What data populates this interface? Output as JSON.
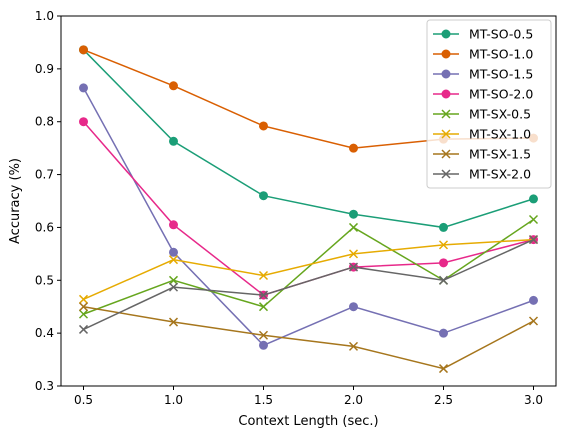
{
  "chart_data": {
    "type": "line",
    "title": "",
    "xlabel": "Context Length (sec.)",
    "ylabel": "Accuracy (%)",
    "x": [
      0.5,
      1.0,
      1.5,
      2.0,
      2.5,
      3.0
    ],
    "xticks": [
      "0.5",
      "1.0",
      "1.5",
      "2.0",
      "2.5",
      "3.0"
    ],
    "yticks": [
      "0.3",
      "0.4",
      "0.5",
      "0.6",
      "0.7",
      "0.8",
      "0.9",
      "1.0"
    ],
    "xlim": [
      0.375,
      3.125
    ],
    "ylim": [
      0.3,
      1.0
    ],
    "grid": false,
    "legend_position": "top-right",
    "series": [
      {
        "name": "MT-SO-0.5",
        "color": "#1b9e77",
        "marker": "circle",
        "values": [
          0.936,
          0.763,
          0.66,
          0.625,
          0.6,
          0.654
        ]
      },
      {
        "name": "MT-SO-1.0",
        "color": "#d95f02",
        "marker": "circle",
        "values": [
          0.936,
          0.868,
          0.792,
          0.75,
          0.767,
          0.769
        ]
      },
      {
        "name": "MT-SO-1.5",
        "color": "#7570b3",
        "marker": "circle",
        "values": [
          0.864,
          0.553,
          0.377,
          0.45,
          0.4,
          0.462
        ]
      },
      {
        "name": "MT-SO-2.0",
        "color": "#e7298a",
        "marker": "circle",
        "values": [
          0.8,
          0.605,
          0.472,
          0.525,
          0.533,
          0.577
        ]
      },
      {
        "name": "MT-SX-0.5",
        "color": "#66a61e",
        "marker": "x",
        "values": [
          0.436,
          0.5,
          0.45,
          0.6,
          0.5,
          0.615
        ]
      },
      {
        "name": "MT-SX-1.0",
        "color": "#e6ab02",
        "marker": "x",
        "values": [
          0.464,
          0.539,
          0.509,
          0.55,
          0.567,
          0.577
        ]
      },
      {
        "name": "MT-SX-1.5",
        "color": "#a6761d",
        "marker": "x",
        "values": [
          0.45,
          0.421,
          0.396,
          0.375,
          0.333,
          0.423
        ]
      },
      {
        "name": "MT-SX-2.0",
        "color": "#666666",
        "marker": "x",
        "values": [
          0.407,
          0.487,
          0.472,
          0.525,
          0.5,
          0.577
        ]
      }
    ]
  }
}
